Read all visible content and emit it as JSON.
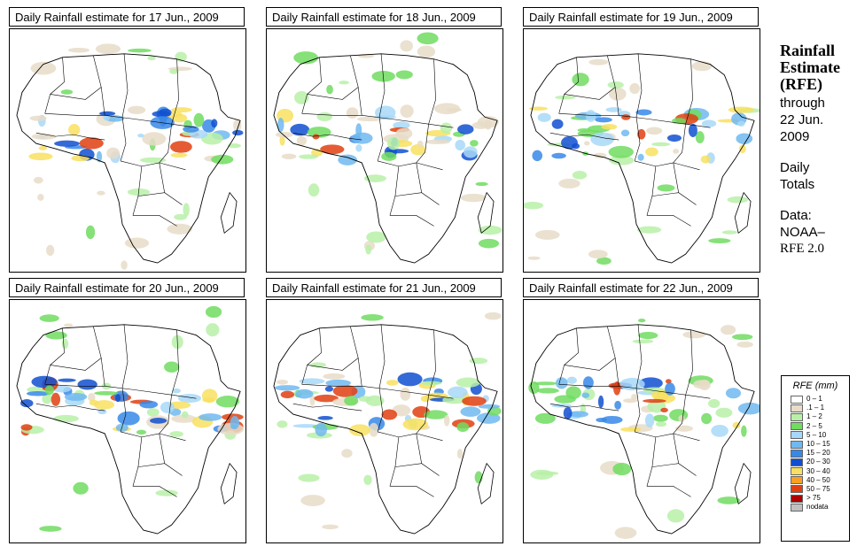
{
  "panels": [
    {
      "title": "Daily Rainfall estimate for  17 Jun., 2009"
    },
    {
      "title": "Daily Rainfall estimate for  18 Jun., 2009"
    },
    {
      "title": "Daily Rainfall estimate for  19 Jun., 2009"
    },
    {
      "title": "Daily Rainfall estimate for  20 Jun., 2009"
    },
    {
      "title": "Daily Rainfall estimate for  21 Jun., 2009"
    },
    {
      "title": "Daily Rainfall estimate for  22 Jun., 2009"
    }
  ],
  "sidebar": {
    "title_line1": "Rainfall",
    "title_line2": "Estimate",
    "title_line3": "(RFE)",
    "through_label": "through",
    "through_date1": "22 Jun.",
    "through_date2": "2009",
    "totals1": "Daily",
    "totals2": "Totals",
    "data_label": "Data:",
    "data_source1": "NOAA–",
    "data_source2": "RFE 2.0"
  },
  "legend": {
    "title": "RFE (mm)",
    "items": [
      {
        "label": "0 – 1",
        "color": "#ffffff"
      },
      {
        "label": ".1 – 1",
        "color": "#e8dcc8"
      },
      {
        "label": "1 – 2",
        "color": "#b8f0a8"
      },
      {
        "label": "2 – 5",
        "color": "#70dc60"
      },
      {
        "label": "5 – 10",
        "color": "#a8d8f8"
      },
      {
        "label": "10 – 15",
        "color": "#70b8f0"
      },
      {
        "label": "15 – 20",
        "color": "#3888e8"
      },
      {
        "label": "20 – 30",
        "color": "#1050d0"
      },
      {
        "label": "30 – 40",
        "color": "#f8e060"
      },
      {
        "label": "40 – 50",
        "color": "#f8a020"
      },
      {
        "label": "50 – 75",
        "color": "#e04010"
      },
      {
        "label": "> 75",
        "color": "#b00000"
      },
      {
        "label": "nodata",
        "color": "#c0c0c0"
      }
    ]
  }
}
